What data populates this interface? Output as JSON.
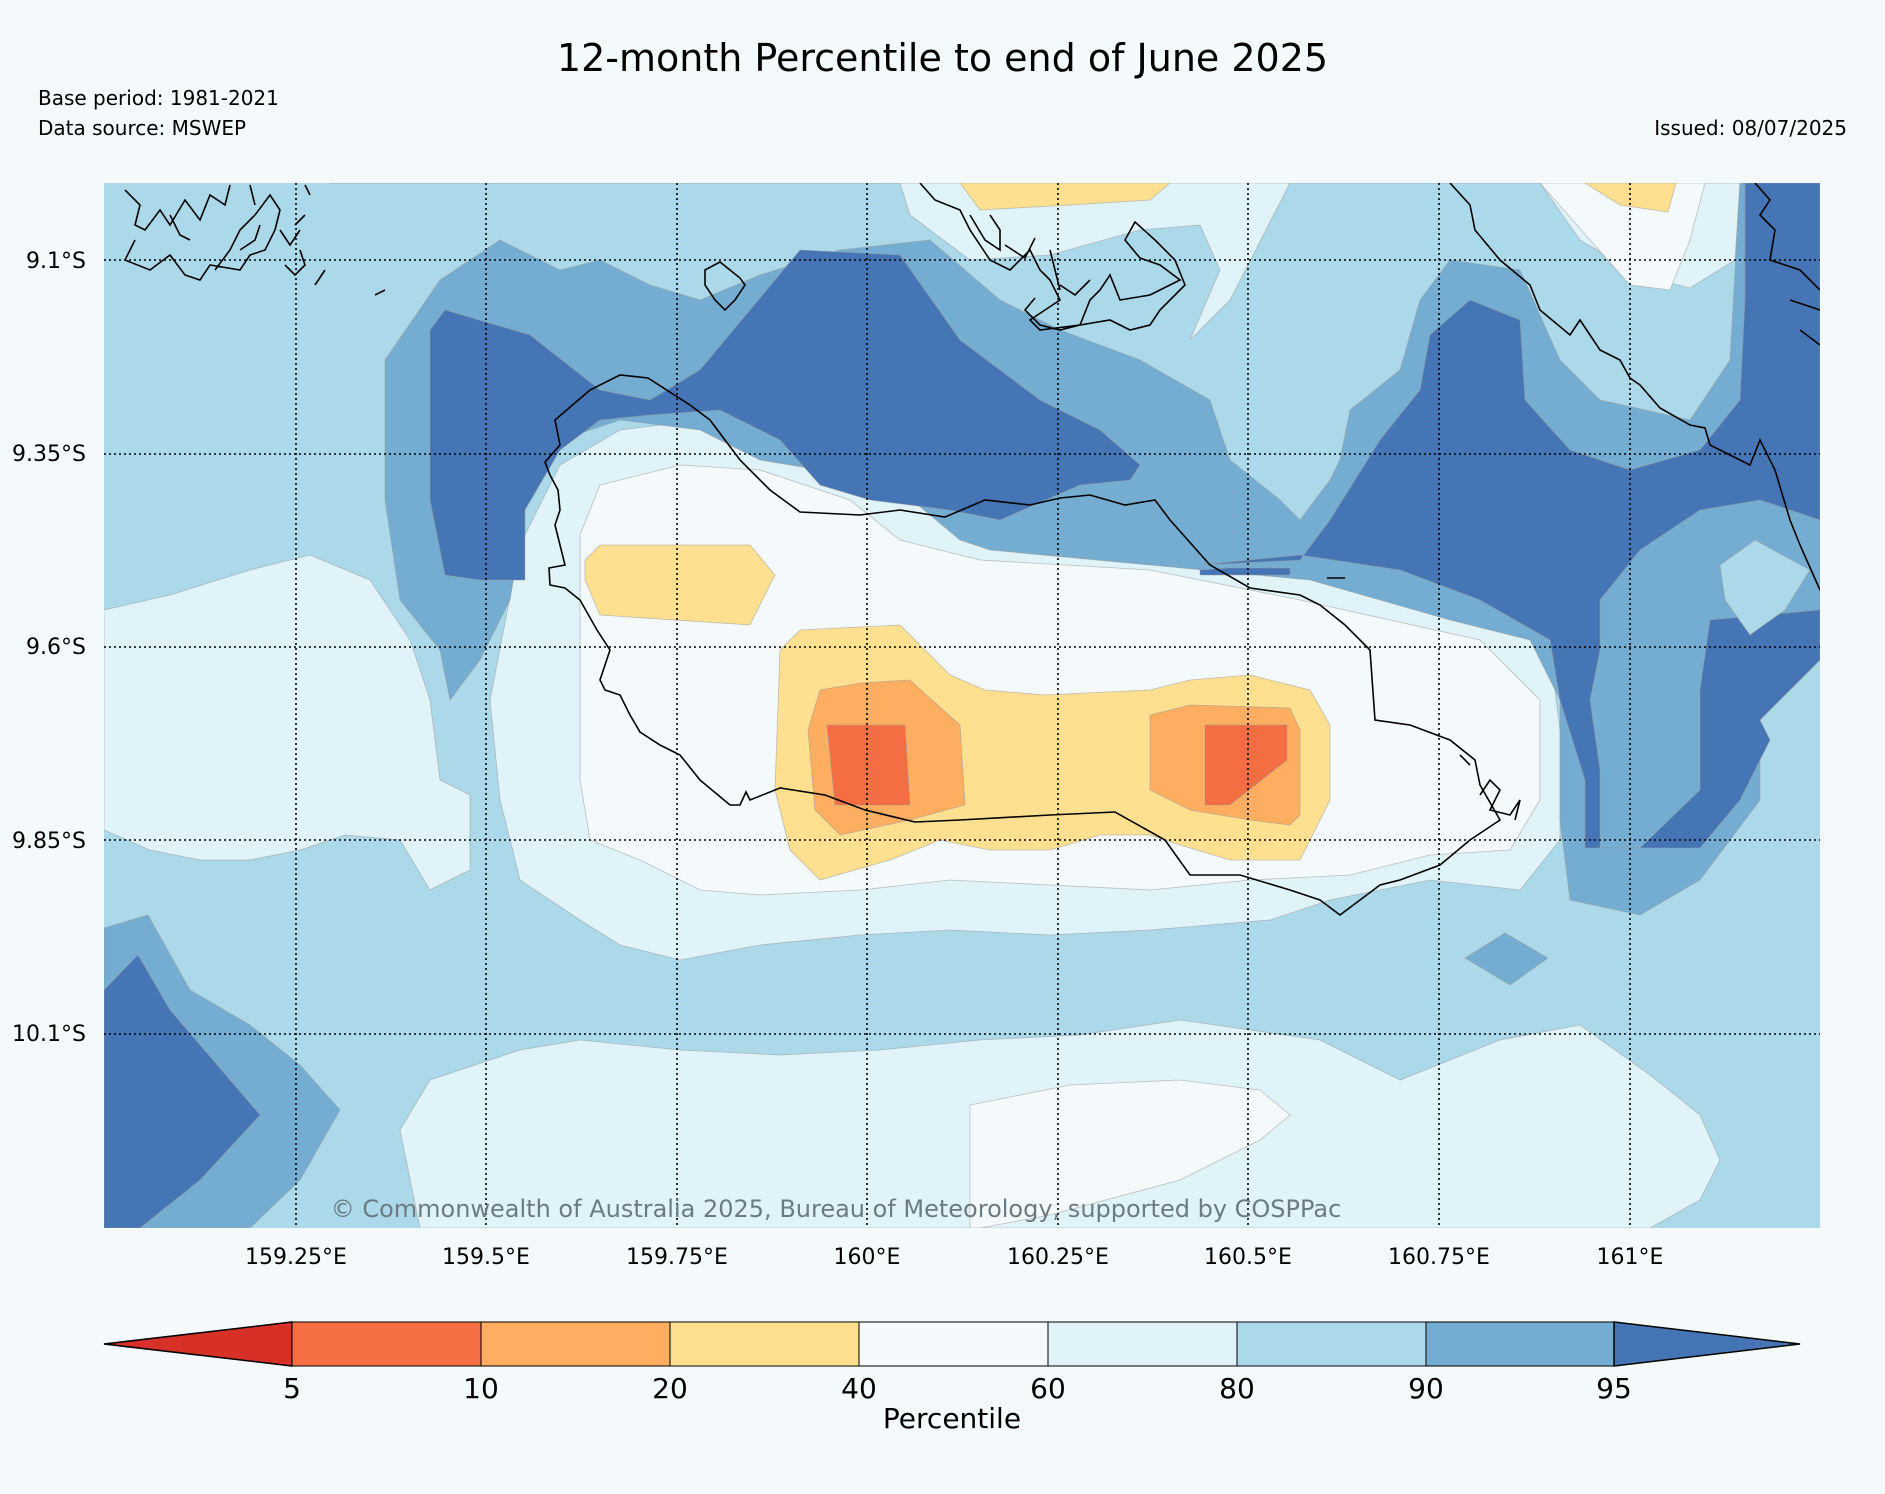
{
  "header": {
    "title": "12-month Percentile to end of June 2025",
    "base_period": "Base period: 1981-2021",
    "data_source": "Data source: MSWEP",
    "issued": "Issued: 08/07/2025"
  },
  "map": {
    "copyright": "© Commonwealth of Australia 2025, Bureau of Meteorology, supported by COSPPac",
    "lat_labels": [
      "9.1°S",
      "9.35°S",
      "9.6°S",
      "9.85°S",
      "10.1°S"
    ],
    "lon_labels": [
      "159.25°E",
      "159.5°E",
      "159.75°E",
      "160°E",
      "160.25°E",
      "160.5°E",
      "160.75°E",
      "161°E"
    ]
  },
  "colorbar": {
    "label": "Percentile",
    "ticks": [
      "5",
      "10",
      "20",
      "40",
      "60",
      "80",
      "90",
      "95"
    ],
    "colors": [
      "#d73027",
      "#f46d43",
      "#fdae61",
      "#fee090",
      "#f4f9fb",
      "#e0f3f8",
      "#abd9e9",
      "#74add1",
      "#4575b4"
    ]
  },
  "palette": {
    "p5_10": "#f46d43",
    "p10_20": "#fdae61",
    "p20_40": "#fee090",
    "p40_60": "#f4f9fb",
    "p60_80": "#e0f3f8",
    "p80_90": "#abd9e9",
    "p90_95": "#74add1",
    "p95_plus": "#4575b4"
  }
}
